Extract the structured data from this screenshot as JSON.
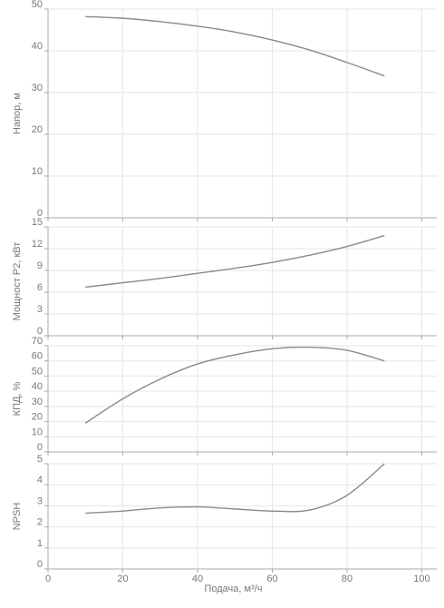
{
  "chart_data": {
    "type": "line",
    "x_axis": {
      "label": "Подача, м³/ч",
      "range": [
        0,
        104
      ],
      "ticks": [
        "0",
        "20",
        "40",
        "60",
        "80",
        "100"
      ],
      "tick_values": [
        0,
        20,
        40,
        60,
        80,
        100
      ]
    },
    "grid": true,
    "line_color": "#8a8a8a",
    "grid_color": "#e6e6e6",
    "panels": [
      {
        "id": "head",
        "ylabel": "Напор, м",
        "ylim": [
          0,
          50
        ],
        "yticks": [
          "0",
          "10",
          "20",
          "30",
          "40",
          "50"
        ],
        "ytick_values": [
          0,
          10,
          20,
          30,
          40,
          50
        ],
        "series": [
          {
            "x": [
              10,
              20,
              30,
              40,
              50,
              60,
              70,
              80,
              90
            ],
            "values": [
              48.2,
              47.8,
              47.0,
              45.9,
              44.5,
              42.6,
              40.2,
              37.2,
              34.0
            ]
          }
        ]
      },
      {
        "id": "power",
        "ylabel": "Мощност P2, кВт",
        "ylim": [
          0,
          15
        ],
        "yticks": [
          "0",
          "3",
          "6",
          "9",
          "12",
          "15"
        ],
        "ytick_values": [
          0,
          3,
          6,
          9,
          12,
          15
        ],
        "series": [
          {
            "x": [
              10,
              20,
              30,
              40,
              50,
              60,
              70,
              80,
              90
            ],
            "values": [
              6.7,
              7.3,
              7.9,
              8.6,
              9.3,
              10.1,
              11.1,
              12.3,
              13.8
            ]
          }
        ]
      },
      {
        "id": "efficiency",
        "ylabel": "КПД, %",
        "ylim": [
          0,
          70
        ],
        "yticks": [
          "0",
          "10",
          "20",
          "30",
          "40",
          "50",
          "60",
          "70"
        ],
        "ytick_values": [
          0,
          10,
          20,
          30,
          40,
          50,
          60,
          70
        ],
        "series": [
          {
            "x": [
              10,
              20,
              30,
              40,
              50,
              60,
              70,
              80,
              90
            ],
            "values": [
              19,
              35,
              48,
              58,
              64,
              68,
              69,
              67,
              60
            ]
          }
        ]
      },
      {
        "id": "npsh",
        "ylabel": "NPSH",
        "ylim": [
          0,
          5
        ],
        "yticks": [
          "0",
          "1",
          "2",
          "3",
          "4",
          "5"
        ],
        "ytick_values": [
          0,
          1,
          2,
          3,
          4,
          5
        ],
        "series": [
          {
            "x": [
              10,
              20,
              30,
              40,
              50,
              60,
              70,
              80,
              90
            ],
            "values": [
              2.65,
              2.75,
              2.9,
              2.95,
              2.85,
              2.75,
              2.8,
              3.5,
              5.0
            ]
          }
        ]
      }
    ]
  }
}
